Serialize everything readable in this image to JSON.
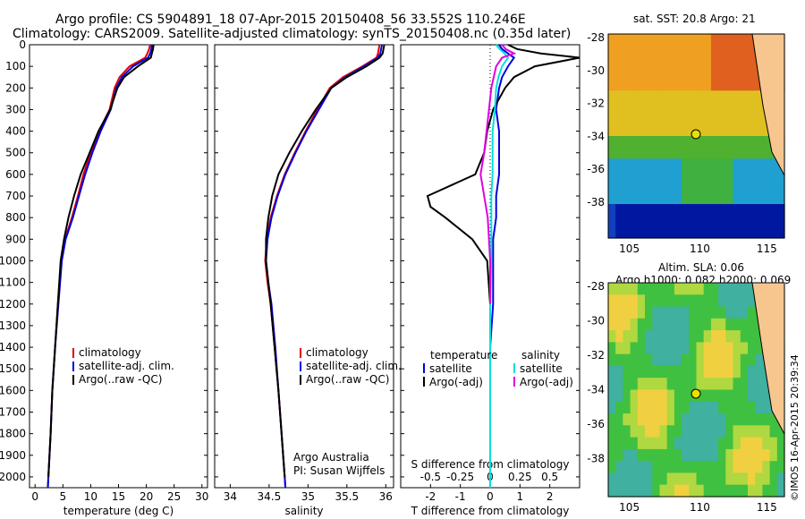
{
  "header": {
    "line1": "Argo profile: CS 5904891_18 07-Apr-2015 20150408_56 33.552S 110.246E",
    "line2": "Climatology: CARS2009. Satellite-adjusted climatology: synTS_20150408.nc (0.35d later)"
  },
  "map_titles": {
    "sst": "sat. SST: 20.8 Argo: 21",
    "sla1": "Altim. SLA: 0.06",
    "sla2": "Argo h1000: 0.082 h2000: 0.069"
  },
  "watermark": "©IMOS 16-Apr-2015 20:39:34",
  "credits": {
    "line1": "Argo Australia",
    "line2": "PI: Susan Wijffels"
  },
  "colors": {
    "climatology": "#e00000",
    "satellite": "#0000e0",
    "argo": "#000000",
    "sat_salinity": "#00e0e0",
    "argo_salinity": "#e000e0"
  },
  "chart_data": [
    {
      "type": "line",
      "xlabel": "temperature (deg C)",
      "ylim": [
        2050,
        0
      ],
      "xlim": [
        -1,
        31
      ],
      "xticks": [
        0,
        5,
        10,
        15,
        20,
        25,
        30
      ],
      "yticks": [
        0,
        100,
        200,
        300,
        400,
        500,
        600,
        700,
        800,
        900,
        1000,
        1100,
        1200,
        1300,
        1400,
        1500,
        1600,
        1700,
        1800,
        1900,
        2000
      ],
      "legend": [
        "climatology",
        "satellite-adj. clim.",
        "Argo(..raw -QC)"
      ],
      "series": [
        {
          "name": "climatology",
          "color": "#e00000",
          "points": [
            [
              20.7,
              0
            ],
            [
              20.5,
              20
            ],
            [
              20.2,
              40
            ],
            [
              19.8,
              60
            ],
            [
              17.0,
              100
            ],
            [
              15.2,
              150
            ],
            [
              14.3,
              200
            ],
            [
              13.4,
              300
            ],
            [
              11.5,
              400
            ],
            [
              10.0,
              500
            ],
            [
              8.7,
              600
            ],
            [
              7.7,
              700
            ],
            [
              6.6,
              800
            ],
            [
              5.4,
              900
            ],
            [
              4.7,
              1000
            ],
            [
              4.1,
              1200
            ],
            [
              3.6,
              1400
            ],
            [
              3.1,
              1600
            ],
            [
              2.8,
              1800
            ],
            [
              2.4,
              2000
            ],
            [
              2.3,
              2050
            ]
          ]
        },
        {
          "name": "satellite-adj. clim.",
          "color": "#0000e0",
          "points": [
            [
              21.0,
              0
            ],
            [
              20.9,
              20
            ],
            [
              20.7,
              40
            ],
            [
              20.3,
              60
            ],
            [
              17.6,
              100
            ],
            [
              15.6,
              150
            ],
            [
              14.6,
              200
            ],
            [
              13.6,
              300
            ],
            [
              11.8,
              400
            ],
            [
              10.3,
              500
            ],
            [
              9.0,
              600
            ],
            [
              7.9,
              700
            ],
            [
              6.8,
              800
            ],
            [
              5.5,
              900
            ],
            [
              4.8,
              1000
            ],
            [
              4.2,
              1200
            ],
            [
              3.6,
              1400
            ],
            [
              3.1,
              1600
            ],
            [
              2.8,
              1800
            ],
            [
              2.4,
              2000
            ],
            [
              2.3,
              2050
            ]
          ]
        },
        {
          "name": "Argo(..raw -QC)",
          "color": "#000000",
          "points": [
            [
              21.3,
              0
            ],
            [
              21.2,
              20
            ],
            [
              21.0,
              40
            ],
            [
              20.8,
              60
            ],
            [
              18.5,
              100
            ],
            [
              16.0,
              150
            ],
            [
              14.8,
              200
            ],
            [
              13.5,
              300
            ],
            [
              11.4,
              400
            ],
            [
              9.8,
              500
            ],
            [
              8.2,
              600
            ],
            [
              7.0,
              700
            ],
            [
              6.0,
              800
            ],
            [
              5.2,
              900
            ],
            [
              4.6,
              1000
            ],
            [
              4.1,
              1200
            ],
            [
              3.6,
              1400
            ],
            [
              3.1,
              1600
            ],
            [
              2.8,
              1800
            ],
            [
              2.4,
              2000
            ]
          ]
        }
      ]
    },
    {
      "type": "line",
      "xlabel": "salinity",
      "ylim": [
        2050,
        0
      ],
      "xlim": [
        33.8,
        36.1
      ],
      "xticks": [
        34,
        34.5,
        35,
        35.5,
        36
      ],
      "xtick_labels": [
        "34",
        "34.5",
        "35",
        "35.5",
        "36"
      ],
      "legend": [
        "climatology",
        "satellite-adj. clim.",
        "Argo(..raw -QC)"
      ],
      "series": [
        {
          "name": "climatology",
          "color": "#e00000",
          "points": [
            [
              35.92,
              0
            ],
            [
              35.9,
              40
            ],
            [
              35.88,
              60
            ],
            [
              35.7,
              100
            ],
            [
              35.45,
              150
            ],
            [
              35.28,
              200
            ],
            [
              35.12,
              300
            ],
            [
              34.97,
              400
            ],
            [
              34.83,
              500
            ],
            [
              34.7,
              600
            ],
            [
              34.6,
              700
            ],
            [
              34.52,
              800
            ],
            [
              34.47,
              900
            ],
            [
              34.45,
              1000
            ],
            [
              34.48,
              1100
            ],
            [
              34.52,
              1200
            ],
            [
              34.57,
              1400
            ],
            [
              34.62,
              1600
            ],
            [
              34.66,
              1800
            ],
            [
              34.7,
              2000
            ],
            [
              34.71,
              2050
            ]
          ]
        },
        {
          "name": "satellite-adj. clim.",
          "color": "#0000e0",
          "points": [
            [
              35.95,
              0
            ],
            [
              35.93,
              40
            ],
            [
              35.9,
              60
            ],
            [
              35.72,
              100
            ],
            [
              35.48,
              150
            ],
            [
              35.3,
              200
            ],
            [
              35.14,
              300
            ],
            [
              34.98,
              400
            ],
            [
              34.84,
              500
            ],
            [
              34.71,
              600
            ],
            [
              34.61,
              700
            ],
            [
              34.53,
              800
            ],
            [
              34.48,
              900
            ],
            [
              34.46,
              1000
            ],
            [
              34.49,
              1100
            ],
            [
              34.53,
              1200
            ],
            [
              34.58,
              1400
            ],
            [
              34.62,
              1600
            ],
            [
              34.66,
              1800
            ],
            [
              34.7,
              2000
            ],
            [
              34.71,
              2050
            ]
          ]
        },
        {
          "name": "Argo(..raw -QC)",
          "color": "#000000",
          "points": [
            [
              35.98,
              0
            ],
            [
              35.96,
              40
            ],
            [
              35.92,
              60
            ],
            [
              35.75,
              100
            ],
            [
              35.5,
              150
            ],
            [
              35.3,
              200
            ],
            [
              35.1,
              300
            ],
            [
              34.92,
              400
            ],
            [
              34.76,
              500
            ],
            [
              34.62,
              600
            ],
            [
              34.54,
              700
            ],
            [
              34.49,
              800
            ],
            [
              34.46,
              900
            ],
            [
              34.46,
              1000
            ],
            [
              34.49,
              1100
            ],
            [
              34.52,
              1200
            ],
            [
              34.57,
              1400
            ],
            [
              34.62,
              1600
            ],
            [
              34.66,
              1800
            ],
            [
              34.7,
              2000
            ]
          ]
        }
      ]
    },
    {
      "type": "line",
      "xlabel": "T difference from climatology",
      "xlabel_top": "S difference from climatology",
      "ylim": [
        2050,
        0
      ],
      "xlim": [
        -3,
        3
      ],
      "xticks": [
        -2,
        -1,
        0,
        1,
        2
      ],
      "xticks_top": [
        -0.5,
        -0.25,
        0,
        0.25,
        0.5
      ],
      "legend_temperature": {
        "title": "temperature",
        "items": [
          "satellite",
          "Argo(-adj)"
        ]
      },
      "legend_salinity": {
        "title": "salinity",
        "items": [
          "satellite",
          "Argo(-adj)"
        ]
      },
      "series": [
        {
          "name": "temperature satellite",
          "color": "#0000e0",
          "points": [
            [
              0.3,
              0
            ],
            [
              0.4,
              20
            ],
            [
              0.6,
              40
            ],
            [
              0.8,
              60
            ],
            [
              0.6,
              100
            ],
            [
              0.4,
              150
            ],
            [
              0.3,
              200
            ],
            [
              0.2,
              300
            ],
            [
              0.3,
              400
            ],
            [
              0.3,
              500
            ],
            [
              0.3,
              600
            ],
            [
              0.2,
              700
            ],
            [
              0.2,
              800
            ],
            [
              0.1,
              900
            ],
            [
              0.1,
              1000
            ],
            [
              0.1,
              1200
            ],
            [
              0,
              1400
            ],
            [
              0,
              1600
            ],
            [
              0,
              1800
            ],
            [
              0,
              2000
            ],
            [
              0,
              2050
            ]
          ]
        },
        {
          "name": "temperature Argo(-adj)",
          "color": "#000000",
          "points": [
            [
              0.6,
              0
            ],
            [
              0.9,
              20
            ],
            [
              1.7,
              40
            ],
            [
              3,
              60
            ],
            [
              1.5,
              100
            ],
            [
              0.8,
              150
            ],
            [
              0.5,
              200
            ],
            [
              0.1,
              300
            ],
            [
              -0.1,
              400
            ],
            [
              -0.2,
              500
            ],
            [
              -0.5,
              600
            ],
            [
              -2.1,
              700
            ],
            [
              -2.0,
              750
            ],
            [
              -1.5,
              800
            ],
            [
              -0.6,
              900
            ],
            [
              -0.1,
              1000
            ],
            [
              0,
              1200
            ],
            [
              0,
              1400
            ],
            [
              0,
              1600
            ],
            [
              0,
              1800
            ],
            [
              0,
              2000
            ]
          ]
        },
        {
          "name": "salinity satellite",
          "color": "#00e0e0",
          "points": [
            [
              0.05,
              0
            ],
            [
              0.08,
              20
            ],
            [
              0.12,
              40
            ],
            [
              0.15,
              60
            ],
            [
              0.1,
              100
            ],
            [
              0.07,
              150
            ],
            [
              0.05,
              200
            ],
            [
              0.04,
              300
            ],
            [
              0.02,
              400
            ],
            [
              0.02,
              500
            ],
            [
              0.02,
              600
            ],
            [
              0.01,
              700
            ],
            [
              0.01,
              800
            ],
            [
              0.01,
              900
            ],
            [
              0.01,
              1000
            ],
            [
              0,
              1200
            ],
            [
              0,
              1400
            ],
            [
              0,
              1600
            ],
            [
              0,
              1800
            ],
            [
              0,
              2000
            ],
            [
              0,
              2050
            ]
          ]
        },
        {
          "name": "salinity Argo(-adj)",
          "color": "#e000e0",
          "points": [
            [
              0.1,
              0
            ],
            [
              0.13,
              20
            ],
            [
              0.2,
              40
            ],
            [
              0.1,
              60
            ],
            [
              0.05,
              100
            ],
            [
              0.03,
              150
            ],
            [
              0.01,
              200
            ],
            [
              -0.01,
              300
            ],
            [
              -0.03,
              400
            ],
            [
              -0.05,
              500
            ],
            [
              -0.08,
              600
            ],
            [
              -0.05,
              700
            ],
            [
              -0.02,
              800
            ],
            [
              -0.01,
              900
            ],
            [
              0,
              1000
            ],
            [
              0,
              1200
            ]
          ]
        }
      ]
    }
  ],
  "maps": {
    "sst": {
      "x_ticks": [
        "105",
        "110",
        "115"
      ],
      "y_ticks": [
        "-28",
        "-30",
        "-32",
        "-34",
        "-36",
        "-38"
      ]
    },
    "sla": {
      "x_ticks": [
        "105",
        "110",
        "115"
      ],
      "y_ticks": [
        "-28",
        "-30",
        "-32",
        "-34",
        "-36",
        "-38"
      ]
    }
  }
}
